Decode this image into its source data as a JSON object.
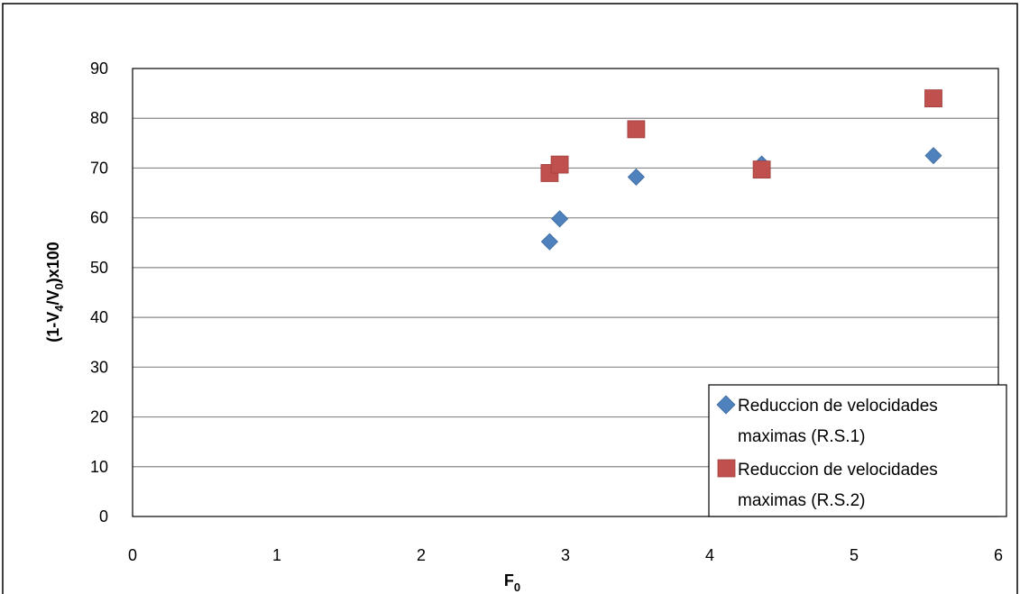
{
  "chart_data": {
    "type": "scatter",
    "title": "",
    "xlabel": "F",
    "xlabel_sub": "0",
    "ylabel": {
      "parts": [
        {
          "text": "(1-V",
          "sub": false
        },
        {
          "text": "4",
          "sub": true
        },
        {
          "text": "/V",
          "sub": false
        },
        {
          "text": "0",
          "sub": true
        },
        {
          "text": ")x100",
          "sub": false
        }
      ]
    },
    "xlim": [
      0,
      6
    ],
    "ylim": [
      0,
      90
    ],
    "xticks": [
      "0",
      "1",
      "2",
      "3",
      "4",
      "5",
      "6"
    ],
    "yticks": [
      "0",
      "10",
      "20",
      "30",
      "40",
      "50",
      "60",
      "70",
      "80",
      "90"
    ],
    "grid": "horizontal",
    "legend_position": "bottom-right",
    "series": [
      {
        "name": [
          "Reduccion de velocidades",
          "maximas (R.S.1)"
        ],
        "marker": "diamond",
        "color": "#4F81BD",
        "x": [
          2.89,
          2.96,
          3.49,
          4.36,
          5.55
        ],
        "y": [
          55.2,
          59.8,
          68.2,
          70.8,
          72.5
        ]
      },
      {
        "name": [
          "Reduccion de velocidades",
          "maximas (R.S.2)"
        ],
        "marker": "square",
        "color": "#C0504D",
        "x": [
          2.89,
          2.96,
          3.49,
          4.36,
          5.55
        ],
        "y": [
          69.0,
          70.7,
          77.8,
          69.7,
          84.0
        ]
      }
    ]
  }
}
